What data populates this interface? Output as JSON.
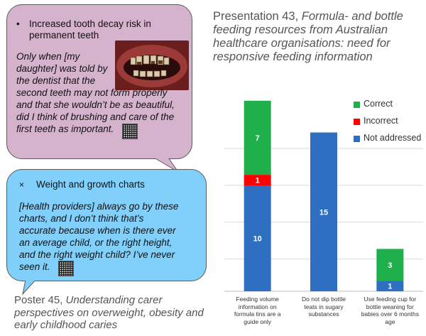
{
  "quote_box_1": {
    "bullet_symbol": "•",
    "bullet_text_line1": "Increased tooth decay risk in",
    "bullet_text_line2": "permanent teeth",
    "quote_lines": [
      "Only when [my",
      "daughter] was told by",
      "the dentist that the",
      "second teeth may not form properly",
      "and that she wouldn’t be as beautiful,",
      "did I think of brushing and care of the",
      "first teeth as important."
    ],
    "colors": {
      "fill": "#d6b3cc"
    }
  },
  "quote_box_2": {
    "bullet_symbol": "×",
    "bullet_text": "Weight and growth charts",
    "quote_lines": [
      "[Health providers] always go by these",
      "charts, and I don’t think that’s",
      "accurate because when is there ever",
      "an average child, or the right height,",
      "and the right weight child? I’ve never",
      "seen it."
    ],
    "colors": {
      "fill": "#80d0fb"
    }
  },
  "presentation": {
    "prefix": "Presentation 43, ",
    "title_italic_lines": [
      "Formula- and bottle",
      "feeding resources from Australian",
      "healthcare organisations: need for",
      "responsive feeding information"
    ],
    "first_line_plain": "Presentation 43, "
  },
  "poster": {
    "prefix": "Poster 45, ",
    "title_lines": [
      "Understanding carer",
      "perspectives on overweight, obesity and",
      "early childhood caries"
    ]
  },
  "chart_data": {
    "type": "bar",
    "stacked": true,
    "categories": [
      "Feeding volume information on formula tins are a guide only",
      "Do not dip bottle teats in sugary substances",
      "Use feeding cup for bottle weaning for babies over 6 months age"
    ],
    "category_lines": [
      [
        "Feeding volume",
        "information on",
        "formula tins are a",
        "guide only"
      ],
      [
        "Do not dip bottle",
        "teats in sugary",
        "substances"
      ],
      [
        "Use feeding cup for",
        "bottle weaning for",
        "babies over 6 months",
        "age"
      ]
    ],
    "series": [
      {
        "name": "Not addressed",
        "values": [
          10,
          15,
          1
        ],
        "color": "#2e6fc1"
      },
      {
        "name": "Incorrect",
        "values": [
          1,
          0,
          0
        ],
        "color": "#ff0000"
      },
      {
        "name": "Correct",
        "values": [
          7,
          0,
          3
        ],
        "color": "#1fb04b"
      }
    ],
    "ylim": [
      0,
      19
    ],
    "grid": true,
    "legend_placement": "top-right"
  }
}
